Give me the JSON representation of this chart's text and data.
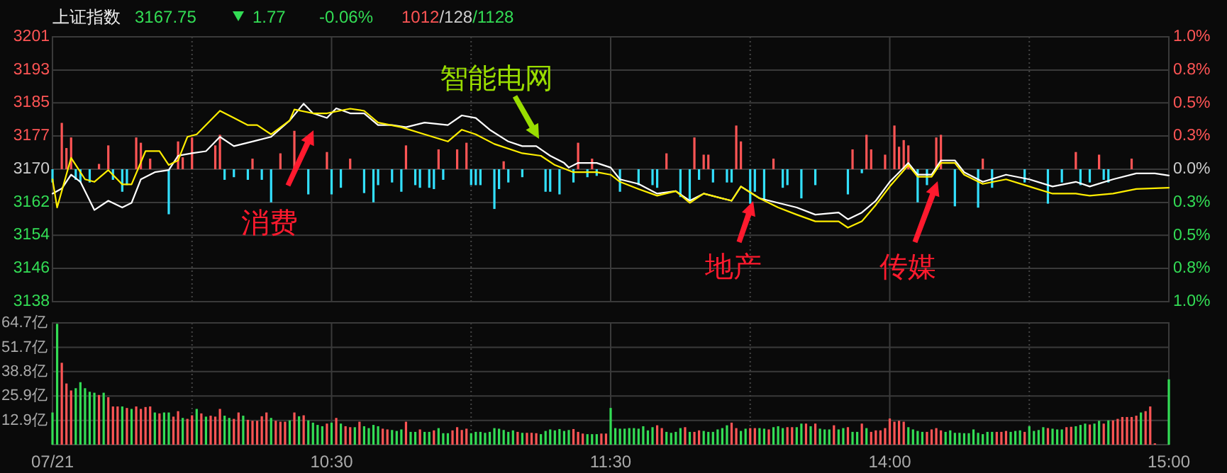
{
  "chart_data": [
    {
      "type": "line",
      "title": "上证指数",
      "annotations": [
        "3167.75",
        "1.77",
        "-0.06%",
        "1012/128/1128",
        "消费",
        "智能电网",
        "地产",
        "传媒"
      ],
      "categories": [
        null,
        null,
        null,
        null,
        null,
        null,
        null,
        null,
        null,
        null,
        null,
        null,
        null,
        null,
        null,
        null,
        null,
        null,
        null,
        null,
        null,
        null,
        null,
        null,
        null,
        null,
        null,
        null,
        null,
        null,
        null,
        null,
        null,
        null,
        null,
        null,
        null,
        null,
        null,
        null,
        null,
        null,
        null,
        null,
        null,
        null,
        null,
        null,
        null,
        null,
        null,
        null,
        null,
        null,
        null,
        null,
        null,
        null,
        null,
        null,
        null,
        null,
        null,
        null,
        null,
        null,
        null,
        null,
        null,
        null,
        null,
        null,
        null,
        null,
        null,
        null,
        null,
        null,
        null,
        null,
        null,
        null,
        null,
        null,
        null,
        null,
        null,
        null,
        null,
        null,
        null,
        null,
        null,
        null,
        null,
        null,
        null,
        null,
        null,
        null,
        null,
        null,
        null,
        null,
        null,
        null,
        null,
        null,
        null,
        null,
        null,
        null,
        null,
        null,
        null,
        null,
        null,
        null,
        null,
        null,
        null,
        null,
        null,
        null,
        null,
        null,
        null,
        null,
        null,
        null,
        null,
        null,
        null,
        null,
        null,
        null,
        null,
        null,
        null,
        null,
        null,
        null,
        null,
        null,
        null,
        null,
        null,
        null,
        null,
        null,
        null,
        null,
        null,
        null,
        null,
        null,
        null,
        null,
        null,
        null,
        null,
        null,
        null,
        null,
        null,
        null,
        null,
        null,
        null,
        null,
        null,
        null,
        null,
        null,
        null,
        null,
        null,
        null,
        null,
        null,
        null,
        null,
        null,
        null,
        null,
        null,
        null,
        null,
        null,
        null,
        null,
        null,
        null,
        null,
        null,
        null,
        null,
        null,
        null,
        null,
        null,
        null,
        null,
        null,
        null,
        null,
        null,
        null,
        null,
        null,
        null,
        null,
        null,
        null,
        null,
        null,
        null,
        null,
        null,
        null,
        null,
        null,
        null,
        null,
        null,
        null,
        null,
        null,
        null,
        null,
        null,
        null,
        null,
        null,
        null,
        null,
        null,
        null,
        null,
        null,
        null
      ],
      "ylim": [
        3138,
        3201
      ],
      "yticks": [
        3201,
        {
          "value": 3193.1,
          "label": "3193"
        },
        {
          "value": 3185.3,
          "label": "3185"
        },
        {
          "value": 3177.4,
          "label": "3177"
        },
        {
          "value": 3169.5,
          "label": "3170"
        },
        {
          "value": 3161.6,
          "label": "3162"
        },
        {
          "value": 3153.8,
          "label": "3154"
        },
        {
          "value": 3145.9,
          "label": "3146"
        },
        3138
      ],
      "y2lim": [
        -1,
        1
      ],
      "y2ticks": [
        {
          "value": 1,
          "label": "1.0%"
        },
        {
          "value": 0.75,
          "label": "0.8%"
        },
        {
          "value": 0.5,
          "label": "0.5%"
        },
        {
          "value": 0.25,
          "label": "0.3%"
        },
        {
          "value": 0,
          "label": "0.0%"
        },
        {
          "value": -0.25,
          "label": "0.3%"
        },
        {
          "value": -0.5,
          "label": "0.5%"
        },
        {
          "value": -0.75,
          "label": "0.8%"
        },
        {
          "value": -1,
          "label": "1.0%"
        }
      ],
      "grid": true,
      "tick_labels": "y",
      "series": [
        {
          "type": "bar",
          "axis": "y2",
          "color": "#ff5555",
          "values": [
            null,
            null,
            0.35,
            0.16,
            0.24,
            null,
            null,
            null,
            null,
            null,
            0.04,
            null,
            0.18,
            null,
            null,
            null,
            null,
            null,
            0.24,
            0.2,
            null,
            0.08,
            null,
            null,
            null,
            null,
            null,
            0.21,
            0.09,
            null,
            0.24,
            null,
            null,
            null,
            null,
            0.18,
            0.26,
            null,
            null,
            null,
            null,
            null,
            null,
            0.08,
            null,
            null,
            null,
            null,
            null,
            0.12,
            null,
            null,
            0.29,
            null,
            null,
            null,
            null,
            null,
            null,
            0.13,
            null,
            null,
            null,
            null,
            0.08,
            null,
            null,
            null,
            null,
            null,
            null,
            null,
            null,
            null,
            null,
            null,
            0.18,
            null,
            null,
            null,
            null,
            null,
            null,
            0.15,
            null,
            null,
            null,
            0.15,
            null,
            0.2,
            null,
            null,
            null,
            null,
            null,
            null,
            null,
            0.06,
            null,
            null,
            null,
            null,
            null,
            null,
            null,
            null,
            null,
            null,
            null,
            null,
            null,
            null,
            null,
            0.2,
            null,
            null,
            0.08,
            null,
            null,
            null,
            null,
            null,
            null,
            null,
            null,
            null,
            null,
            null,
            null,
            null,
            null,
            null,
            0.12,
            null,
            null,
            null,
            null,
            null,
            0.24,
            null,
            0.11,
            0.11,
            null,
            null,
            null,
            null,
            null,
            0.33,
            0.21,
            null,
            null,
            null,
            null,
            null,
            null,
            0.08,
            null,
            null,
            null,
            null,
            null,
            null,
            null,
            null,
            null,
            null,
            null,
            null,
            null,
            null,
            null,
            null,
            0.15,
            null,
            null,
            0.26,
            0.15,
            null,
            null,
            0.11,
            null,
            0.33,
            0.17,
            0.22,
            0.18,
            null,
            null,
            null,
            null,
            null,
            0.24,
            0.26,
            null,
            null,
            null,
            null,
            null,
            null,
            null,
            null,
            0.08,
            null,
            null,
            null,
            null,
            null,
            null,
            null,
            null,
            null,
            null,
            null,
            null,
            null,
            null,
            null,
            null,
            null,
            null,
            null,
            0.13,
            null,
            null,
            null,
            null,
            0.11,
            null,
            null,
            null,
            null,
            null,
            null,
            0.08,
            null,
            null,
            null,
            null,
            null,
            null,
            null,
            null
          ]
        },
        {
          "type": "bar",
          "axis": "y2",
          "color": "#33e0ff",
          "values": [
            -0.1,
            null,
            null,
            null,
            null,
            -0.08,
            -0.1,
            null,
            -0.1,
            null,
            null,
            null,
            null,
            -0.08,
            null,
            -0.17,
            -0.12,
            null,
            null,
            null,
            null,
            null,
            null,
            null,
            null,
            -0.34,
            null,
            null,
            null,
            null,
            null,
            null,
            null,
            null,
            null,
            null,
            null,
            -0.08,
            null,
            -0.06,
            null,
            null,
            -0.08,
            null,
            null,
            -0.08,
            null,
            -0.25,
            null,
            null,
            null,
            null,
            null,
            null,
            null,
            -0.19,
            null,
            null,
            null,
            null,
            -0.19,
            null,
            -0.14,
            null,
            null,
            null,
            null,
            -0.18,
            null,
            -0.25,
            -0.12,
            null,
            null,
            -0.1,
            null,
            -0.17,
            null,
            null,
            -0.12,
            -0.14,
            null,
            -0.14,
            -0.15,
            null,
            -0.08,
            null,
            null,
            null,
            null,
            null,
            -0.12,
            -0.12,
            -0.12,
            null,
            null,
            -0.3,
            -0.15,
            null,
            -0.1,
            null,
            null,
            -0.06,
            null,
            null,
            null,
            null,
            -0.17,
            -0.17,
            null,
            -0.19,
            null,
            null,
            -0.1,
            null,
            null,
            -0.06,
            null,
            -0.05,
            null,
            null,
            null,
            null,
            -0.17,
            null,
            null,
            null,
            -0.12,
            null,
            null,
            -0.12,
            -0.14,
            null,
            null,
            null,
            null,
            -0.21,
            null,
            -0.24,
            null,
            -0.08,
            null,
            null,
            -0.1,
            null,
            null,
            -0.1,
            -0.1,
            null,
            null,
            null,
            -0.26,
            -0.17,
            null,
            -0.24,
            null,
            null,
            null,
            -0.14,
            -0.12,
            null,
            null,
            -0.22,
            null,
            null,
            -0.12,
            null,
            null,
            null,
            null,
            null,
            null,
            -0.19,
            null,
            null,
            -0.03,
            null,
            null,
            null,
            null,
            null,
            null,
            null,
            null,
            null,
            null,
            null,
            -0.25,
            null,
            -0.12,
            null,
            null,
            null,
            null,
            null,
            -0.28,
            null,
            null,
            null,
            null,
            -0.29,
            null,
            null,
            -0.14,
            null,
            null,
            null,
            null,
            null,
            null,
            -0.1,
            null,
            null,
            null,
            null,
            -0.26,
            null,
            null,
            -0.1,
            null,
            null,
            null,
            -0.12,
            null,
            -0.1,
            null,
            null,
            -0.08,
            -0.1,
            null,
            null,
            null,
            null,
            null,
            null,
            null,
            null,
            null,
            null,
            null,
            null,
            null
          ]
        },
        {
          "color": "#ffffff",
          "values": [
            3163.7,
            null,
            3164.9,
            null,
            3168.2,
            null,
            3166.5,
            null,
            null,
            3159.8,
            null,
            null,
            3162,
            null,
            null,
            3160.4,
            null,
            3161.5,
            null,
            3167.1,
            null,
            null,
            3168.8,
            null,
            null,
            3169.3,
            null,
            3172.7,
            null,
            null,
            3173.3,
            null,
            null,
            3173.8,
            null,
            null,
            3177.2,
            null,
            null,
            3175,
            null,
            null,
            null,
            3176.1,
            null,
            null,
            null,
            3177.2,
            null,
            null,
            null,
            3181.1,
            null,
            null,
            3185.1,
            null,
            3182.8,
            null,
            null,
            3181.7,
            null,
            3184,
            null,
            null,
            3182.8,
            null,
            null,
            3182.8,
            null,
            null,
            3180,
            null,
            null,
            3180,
            null,
            null,
            3179.5,
            null,
            null,
            null,
            3180.6,
            null,
            null,
            null,
            null,
            3180,
            null,
            null,
            3182.3,
            null,
            null,
            3181.7,
            null,
            null,
            3178.9,
            null,
            null,
            null,
            3176.1,
            null,
            null,
            3175,
            null,
            null,
            3175,
            null,
            null,
            3172.7,
            null,
            null,
            3171,
            3169.9,
            null,
            3171,
            null,
            null,
            null,
            3171,
            null,
            null,
            3169.9,
            null,
            3167.1,
            null,
            null,
            null,
            3166,
            null,
            null,
            null,
            3163.7,
            null,
            null,
            null,
            3164.3,
            null,
            null,
            3162,
            null,
            null,
            3163.7,
            null,
            null,
            null,
            null,
            null,
            3162,
            null,
            3165.4,
            null,
            null,
            null,
            3162.6,
            null,
            null,
            null,
            3161.5,
            null,
            null,
            null,
            3160.4,
            null,
            null,
            null,
            3158.7,
            null,
            null,
            null,
            null,
            3159.2,
            null,
            3157.6,
            null,
            null,
            3159.2,
            null,
            null,
            3162,
            null,
            null,
            3166.5,
            null,
            null,
            null,
            3171,
            null,
            3168.2,
            null,
            null,
            3168.2,
            null,
            3171.6,
            null,
            null,
            3171.6,
            null,
            3168.8,
            null,
            null,
            null,
            3166.5,
            null,
            null,
            null,
            null,
            3168.2,
            null,
            null,
            null,
            null,
            3167.1,
            null,
            null,
            null,
            null,
            3165.4,
            null,
            null,
            null,
            null,
            3166.5,
            null,
            null,
            3165.4,
            null,
            null,
            null,
            null,
            3167.1,
            null,
            null,
            null,
            null,
            3168.5,
            null,
            null,
            null,
            3168.5,
            null,
            null,
            3168
          ]
        },
        {
          "color": "#ffee00",
          "values": [
            3167.1,
            3160.4,
            null,
            null,
            3172.2,
            null,
            null,
            3167.1,
            null,
            3166.5,
            null,
            null,
            3169.3,
            null,
            null,
            3165.9,
            null,
            3165.9,
            null,
            null,
            3173.8,
            null,
            null,
            3173.8,
            null,
            3170.5,
            null,
            3171.6,
            null,
            3177.2,
            null,
            3177.8,
            null,
            null,
            null,
            null,
            3183.4,
            null,
            null,
            3181.7,
            null,
            null,
            3180,
            null,
            3180,
            null,
            null,
            3177.8,
            null,
            null,
            null,
            3181.1,
            3183.7,
            null,
            null,
            null,
            3182.8,
            null,
            null,
            3182.8,
            null,
            null,
            null,
            null,
            3183.9,
            null,
            null,
            3183.4,
            null,
            null,
            3180.6,
            null,
            null,
            null,
            null,
            3179.5,
            null,
            null,
            null,
            null,
            3177.8,
            null,
            null,
            null,
            null,
            3176.1,
            null,
            null,
            3178.9,
            null,
            null,
            3177.8,
            null,
            null,
            null,
            3175.5,
            null,
            null,
            null,
            null,
            null,
            3173.3,
            null,
            null,
            null,
            3172.7,
            null,
            null,
            3170.5,
            null,
            null,
            null,
            3168.8,
            null,
            null,
            null,
            null,
            3168.8,
            null,
            null,
            3168.2,
            null,
            3166.5,
            null,
            null,
            null,
            3164.8,
            null,
            null,
            null,
            3163.2,
            null,
            null,
            null,
            3164.3,
            null,
            null,
            3161.5,
            null,
            null,
            3163.7,
            null,
            null,
            null,
            null,
            null,
            3162,
            null,
            3165.4,
            null,
            null,
            null,
            3162.6,
            null,
            null,
            null,
            3160.4,
            null,
            null,
            null,
            3158.7,
            null,
            null,
            null,
            3157.1,
            null,
            null,
            null,
            null,
            3157.1,
            null,
            3155.6,
            null,
            null,
            3157.1,
            null,
            null,
            3161,
            null,
            null,
            3165.4,
            null,
            null,
            null,
            3170.5,
            null,
            3167.7,
            null,
            null,
            3167.7,
            null,
            3171,
            null,
            null,
            3171,
            null,
            3168.2,
            null,
            null,
            null,
            3166,
            null,
            null,
            null,
            null,
            3167.1,
            null,
            null,
            null,
            null,
            3165.4,
            null,
            null,
            null,
            null,
            3163.7,
            null,
            null,
            null,
            null,
            3163.7,
            null,
            null,
            3163.2,
            null,
            null,
            null,
            null,
            3163.7,
            null,
            null,
            null,
            null,
            3164.8,
            null,
            null,
            null,
            null,
            null,
            null,
            3165.1
          ]
        }
      ]
    },
    {
      "type": "bar",
      "categories": [
        "07/21",
        null,
        null,
        null,
        null,
        null,
        null,
        null,
        null,
        null,
        null,
        null,
        null,
        null,
        null,
        null,
        null,
        null,
        null,
        null,
        null,
        null,
        null,
        null,
        null,
        null,
        null,
        null,
        null,
        null,
        null,
        null,
        null,
        null,
        null,
        null,
        null,
        null,
        null,
        null,
        null,
        null,
        null,
        null,
        null,
        null,
        null,
        null,
        null,
        null,
        null,
        null,
        null,
        null,
        null,
        null,
        null,
        null,
        null,
        null,
        "10:30",
        null,
        null,
        null,
        null,
        null,
        null,
        null,
        null,
        null,
        null,
        null,
        null,
        null,
        null,
        null,
        null,
        null,
        null,
        null,
        null,
        null,
        null,
        null,
        null,
        null,
        null,
        null,
        null,
        null,
        null,
        null,
        null,
        null,
        null,
        null,
        null,
        null,
        null,
        null,
        null,
        null,
        null,
        null,
        null,
        null,
        null,
        null,
        null,
        null,
        null,
        null,
        null,
        null,
        null,
        null,
        null,
        null,
        null,
        null,
        "11:30",
        null,
        null,
        null,
        null,
        null,
        null,
        null,
        null,
        null,
        null,
        null,
        null,
        null,
        null,
        null,
        null,
        null,
        null,
        null,
        null,
        null,
        null,
        null,
        null,
        null,
        null,
        null,
        null,
        null,
        null,
        null,
        null,
        null,
        null,
        null,
        null,
        null,
        null,
        null,
        null,
        null,
        null,
        null,
        null,
        null,
        null,
        null,
        null,
        null,
        null,
        null,
        null,
        null,
        null,
        null,
        null,
        null,
        null,
        null,
        "14:00",
        null,
        null,
        null,
        null,
        null,
        null,
        null,
        null,
        null,
        null,
        null,
        null,
        null,
        null,
        null,
        null,
        null,
        null,
        null,
        null,
        null,
        null,
        null,
        null,
        null,
        null,
        null,
        null,
        null,
        null,
        null,
        null,
        null,
        null,
        null,
        null,
        null,
        null,
        null,
        null,
        null,
        null,
        null,
        null,
        null,
        null,
        null,
        null,
        null,
        null,
        null,
        null,
        null,
        null,
        null,
        null,
        null,
        null,
        null,
        "15:00"
      ],
      "ylim": [
        0,
        64.7
      ],
      "yticks": [
        {
          "value": 12.9,
          "label": "12.9亿"
        },
        {
          "value": 25.9,
          "label": "25.9亿"
        },
        {
          "value": 38.8,
          "label": "38.8亿"
        },
        {
          "value": 51.7,
          "label": "51.7亿"
        },
        {
          "value": 64.7,
          "label": "64.7亿"
        }
      ],
      "grid": true,
      "values": [
        17.1,
        64.2,
        43.5,
        32.5,
        28.8,
        30.0,
        33.2,
        30.0,
        28.1,
        27.6,
        26.4,
        27.6,
        25.2,
        20.3,
        20.3,
        20.3,
        19.5,
        19.0,
        20.3,
        19.0,
        20.0,
        20.3,
        17.1,
        16.6,
        17.1,
        17.1,
        14.9,
        17.8,
        14.2,
        13.7,
        15.6,
        19.0,
        16.6,
        14.9,
        15.4,
        14.9,
        19.0,
        15.4,
        14.2,
        13.7,
        17.1,
        15.4,
        13.2,
        12.7,
        12.7,
        15.1,
        17.1,
        14.2,
        12.7,
        12.2,
        12.2,
        12.9,
        17.1,
        15.1,
        15.6,
        12.9,
        11.7,
        10.5,
        9.8,
        11.2,
        11.7,
        14.2,
        11.2,
        9.8,
        9.3,
        9.3,
        12.2,
        9.8,
        8.8,
        10.5,
        9.8,
        8.5,
        8.1,
        7.8,
        7.3,
        8.1,
        12.2,
        6.8,
        6.8,
        8.1,
        6.8,
        6.8,
        7.6,
        8.8,
        6.1,
        6.1,
        7.6,
        9.3,
        7.8,
        8.5,
        6.1,
        6.8,
        6.8,
        6.3,
        6.8,
        8.8,
        8.5,
        7.8,
        6.8,
        7.6,
        6.8,
        6.3,
        6.3,
        6.3,
        6.1,
        5.6,
        7.3,
        8.1,
        7.6,
        8.3,
        7.3,
        7.8,
        8.3,
        6.8,
        5.9,
        5.6,
        5.6,
        5.6,
        5.9,
        5.9,
        19.5,
        8.8,
        8.5,
        8.5,
        8.8,
        8.8,
        8.5,
        9.8,
        7.6,
        9.3,
        10.3,
        8.8,
        6.8,
        6.3,
        6.8,
        8.8,
        9.3,
        6.8,
        6.8,
        7.6,
        7.3,
        6.8,
        6.8,
        8.1,
        8.8,
        10.3,
        11.7,
        8.8,
        7.3,
        8.5,
        8.8,
        8.8,
        8.8,
        8.5,
        8.1,
        9.3,
        9.8,
        8.8,
        9.3,
        9.3,
        9.3,
        11.2,
        11.2,
        9.8,
        11.2,
        8.5,
        8.1,
        8.1,
        10.3,
        8.1,
        8.8,
        9.3,
        6.8,
        6.8,
        11.2,
        8.8,
        6.8,
        7.6,
        7.6,
        8.8,
        13.9,
        12.2,
        12.7,
        12.2,
        9.3,
        8.1,
        7.3,
        6.8,
        6.8,
        8.1,
        8.8,
        7.6,
        6.8,
        7.6,
        6.3,
        6.3,
        6.1,
        6.1,
        8.1,
        6.3,
        5.6,
        6.8,
        6.8,
        6.8,
        6.8,
        7.3,
        6.8,
        7.3,
        7.6,
        6.8,
        9.8,
        7.3,
        7.8,
        9.3,
        8.8,
        8.5,
        8.1,
        8.1,
        9.3,
        9.5,
        9.8,
        10.5,
        11.2,
        10.7,
        11.2,
        12.7,
        11.2,
        12.9,
        12.9,
        13.7,
        14.7,
        14.7,
        14.7,
        15.4,
        17.1,
        17.8,
        20.3,
        0.7,
        null,
        null,
        34.7
      ],
      "colors": [
        "#33dd55",
        "#33dd55",
        "#ff5555",
        "#ff5555",
        "#ff5555",
        "#33dd55",
        "#33dd55",
        "#33dd55",
        "#33dd55",
        "#33dd55",
        "#ff5555",
        "#33dd55",
        "#ff5555",
        "#ff5555",
        "#ff5555",
        "#33dd55",
        "#ff5555",
        "#33dd55",
        "#ff5555",
        "#ff5555",
        "#ff5555",
        "#ff5555",
        "#33dd55",
        "#ff5555",
        "#33dd55",
        "#33dd55",
        "#ff5555",
        "#ff5555",
        "#33dd55",
        "#ff5555",
        "#ff5555",
        "#33dd55",
        "#ff5555",
        "#33dd55",
        "#ff5555",
        "#ff5555",
        "#ff5555",
        "#33dd55",
        "#33dd55",
        "#ff5555",
        "#ff5555",
        "#33dd55",
        "#ff5555",
        "#ff5555",
        "#ff5555",
        "#ff5555",
        "#ff5555",
        "#33dd55",
        "#ff5555",
        "#ff5555",
        "#ff5555",
        "#33dd55",
        "#ff5555",
        "#33dd55",
        "#ff5555",
        "#33dd55",
        "#33dd55",
        "#33dd55",
        "#33dd55",
        "#ff5555",
        "#33dd55",
        "#ff5555",
        "#33dd55",
        "#ff5555",
        "#ff5555",
        "#33dd55",
        "#ff5555",
        "#33dd55",
        "#33dd55",
        "#33dd55",
        "#33dd55",
        "#ff5555",
        "#ff5555",
        "#33dd55",
        "#33dd55",
        "#33dd55",
        "#ff5555",
        "#33dd55",
        "#33dd55",
        "#ff5555",
        "#33dd55",
        "#33dd55",
        "#ff5555",
        "#33dd55",
        "#33dd55",
        "#33dd55",
        "#ff5555",
        "#ff5555",
        "#ff5555",
        "#ff5555",
        "#33dd55",
        "#33dd55",
        "#33dd55",
        "#33dd55",
        "#33dd55",
        "#33dd55",
        "#33dd55",
        "#33dd55",
        "#33dd55",
        "#33dd55",
        "#ff5555",
        "#33dd55",
        "#ff5555",
        "#ff5555",
        "#ff5555",
        "#33dd55",
        "#33dd55",
        "#33dd55",
        "#33dd55",
        "#33dd55",
        "#33dd55",
        "#33dd55",
        "#ff5555",
        "#ff5555",
        "#ff5555",
        "#33dd55",
        "#33dd55",
        "#33dd55",
        "#ff5555",
        "#ff5555",
        "#33dd55",
        "#33dd55",
        "#33dd55",
        "#33dd55",
        "#33dd55",
        "#33dd55",
        "#33dd55",
        "#33dd55",
        "#33dd55",
        "#33dd55",
        "#ff5555",
        "#ff5555",
        "#33dd55",
        "#33dd55",
        "#33dd55",
        "#33dd55",
        "#ff5555",
        "#33dd55",
        "#ff5555",
        "#ff5555",
        "#33dd55",
        "#33dd55",
        "#33dd55",
        "#33dd55",
        "#33dd55",
        "#33dd55",
        "#ff5555",
        "#ff5555",
        "#33dd55",
        "#33dd55",
        "#ff5555",
        "#ff5555",
        "#33dd55",
        "#33dd55",
        "#ff5555",
        "#33dd55",
        "#33dd55",
        "#33dd55",
        "#ff5555",
        "#ff5555",
        "#33dd55",
        "#33dd55",
        "#ff5555",
        "#33dd55",
        "#ff5555",
        "#33dd55",
        "#33dd55",
        "#33dd55",
        "#ff5555",
        "#33dd55",
        "#33dd55",
        "#ff5555",
        "#33dd55",
        "#33dd55",
        "#ff5555",
        "#33dd55",
        "#ff5555",
        "#ff5555",
        "#ff5555",
        "#ff5555",
        "#ff5555",
        "#ff5555",
        "#ff5555",
        "#ff5555",
        "#33dd55",
        "#33dd55",
        "#33dd55",
        "#33dd55",
        "#ff5555",
        "#ff5555",
        "#ff5555",
        "#ff5555",
        "#33dd55",
        "#33dd55",
        "#33dd55",
        "#33dd55",
        "#33dd55",
        "#33dd55",
        "#33dd55",
        "#33dd55",
        "#33dd55",
        "#33dd55",
        "#33dd55",
        "#ff5555",
        "#ff5555",
        "#ff5555",
        "#33dd55",
        "#33dd55",
        "#33dd55",
        "#ff5555",
        "#33dd55",
        "#33dd55",
        "#33dd55",
        "#33dd55",
        "#ff5555",
        "#33dd55",
        "#33dd55",
        "#33dd55",
        "#ff5555",
        "#ff5555",
        "#33dd55",
        "#33dd55",
        "#33dd55",
        "#ff5555",
        "#33dd55",
        "#33dd55",
        "#ff5555",
        "#33dd55",
        "#ff5555",
        "#ff5555",
        "#ff5555",
        "#ff5555",
        "#ff5555",
        "#ff5555",
        "#33dd55",
        "#ff5555",
        "#ff5555",
        "#ff5555",
        null,
        null,
        "#33dd55"
      ]
    }
  ]
}
